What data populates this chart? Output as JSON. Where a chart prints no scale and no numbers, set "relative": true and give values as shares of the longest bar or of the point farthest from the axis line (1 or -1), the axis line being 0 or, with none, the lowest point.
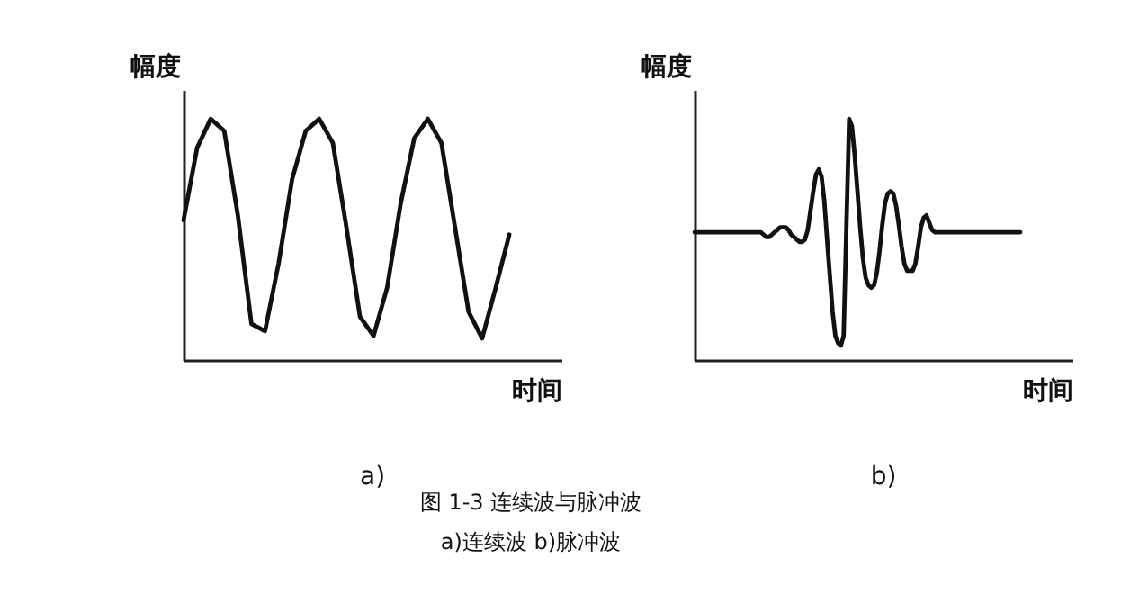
{
  "chart_data": [
    {
      "type": "line",
      "title": "a)",
      "xlabel": "时间",
      "ylabel": "幅度",
      "relative": true,
      "categories": [
        null,
        null,
        null,
        null,
        null,
        null,
        null,
        null,
        null,
        null,
        null,
        null,
        null,
        null,
        null,
        null,
        null,
        null,
        null,
        null,
        null,
        null,
        null,
        null,
        null
      ],
      "series": [
        {
          "color": "#111111",
          "values": [
            0.58,
            0.88,
            1.0,
            0.95,
            0.6,
            0.15,
            0.12,
            0.4,
            0.75,
            0.95,
            1.0,
            0.9,
            0.55,
            0.18,
            0.1,
            0.3,
            0.65,
            0.92,
            1.0,
            0.9,
            0.55,
            0.2,
            0.09,
            0.3,
            0.52
          ]
        }
      ],
      "annotations": [
        "图 1-3  连续波与脉冲波",
        "a)连续波  b)脉冲波"
      ]
    },
    {
      "type": "line",
      "title": "b)",
      "xlabel": "时间",
      "ylabel": "幅度",
      "relative": true,
      "categories": [
        null,
        null,
        null,
        null,
        null,
        null,
        null,
        null,
        null,
        null,
        null,
        null,
        null,
        null,
        null,
        null,
        null,
        null,
        null,
        null,
        null,
        null,
        null,
        null,
        null,
        null,
        null,
        null,
        null,
        null,
        null,
        null,
        null,
        null,
        null,
        null,
        null,
        null,
        null,
        null,
        null,
        null,
        null,
        null,
        null,
        null,
        null,
        null,
        null,
        null,
        null,
        null,
        null,
        null,
        null,
        null,
        null,
        null,
        null,
        null,
        null,
        null,
        null,
        null,
        null,
        null,
        null,
        null,
        null,
        null,
        null,
        null,
        null,
        null,
        null,
        null,
        null,
        null,
        null,
        null,
        null,
        null,
        null,
        null,
        null,
        null,
        null,
        null,
        null,
        null,
        null,
        null,
        null,
        null,
        null,
        null,
        null,
        null,
        null,
        null,
        null,
        null,
        null,
        null,
        null,
        null,
        null,
        null,
        null,
        null,
        null,
        null,
        null,
        null,
        null,
        null,
        null,
        null,
        null
      ],
      "series": [
        {
          "color": "#111111",
          "values": [
            0.53,
            0.53,
            0.53,
            0.53,
            0.53,
            0.53,
            0.53,
            0.53,
            0.53,
            0.53,
            0.53,
            0.53,
            0.53,
            0.53,
            0.53,
            0.53,
            0.53,
            0.53,
            0.53,
            0.53,
            0.53,
            0.53,
            0.53,
            0.53,
            0.53,
            0.52,
            0.51,
            0.51,
            0.52,
            0.53,
            0.54,
            0.55,
            0.55,
            0.55,
            0.54,
            0.52,
            0.51,
            0.5,
            0.49,
            0.49,
            0.5,
            0.54,
            0.62,
            0.7,
            0.77,
            0.79,
            0.76,
            0.66,
            0.5,
            0.35,
            0.2,
            0.1,
            0.07,
            0.06,
            0.1,
            0.55,
            1.0,
            0.97,
            0.85,
            0.7,
            0.55,
            0.42,
            0.34,
            0.31,
            0.3,
            0.31,
            0.36,
            0.45,
            0.56,
            0.65,
            0.69,
            0.7,
            0.69,
            0.64,
            0.56,
            0.47,
            0.4,
            0.37,
            0.37,
            0.37,
            0.4,
            0.47,
            0.55,
            0.59,
            0.6,
            0.57,
            0.54,
            0.53,
            0.53,
            0.53,
            0.53,
            0.53,
            0.53,
            0.53,
            0.53,
            0.53,
            0.53,
            0.53,
            0.53,
            0.53,
            0.53,
            0.53,
            0.53,
            0.53,
            0.53,
            0.53,
            0.53,
            0.53,
            0.53,
            0.53,
            0.53,
            0.53,
            0.53,
            0.53,
            0.53,
            0.53,
            0.53,
            0.53,
            0.53
          ]
        }
      ]
    }
  ]
}
